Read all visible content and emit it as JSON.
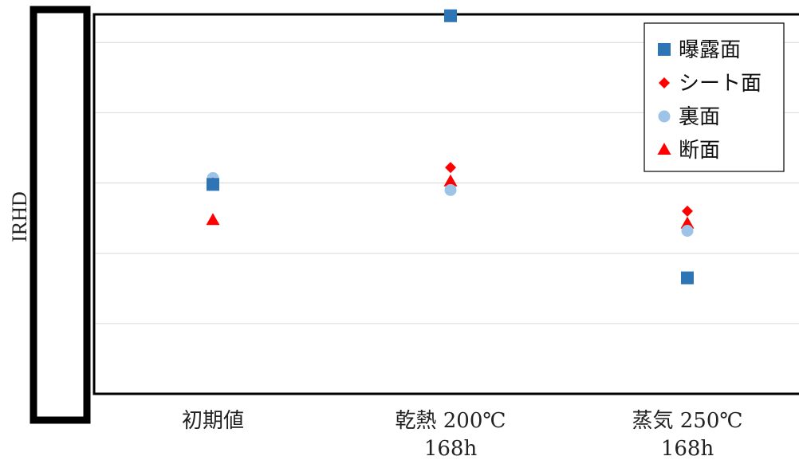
{
  "chart_data": {
    "type": "scatter",
    "title": "",
    "xlabel": "",
    "ylabel": "IRHD",
    "categories": [
      [
        "初期値"
      ],
      [
        "乾熱 200℃",
        "168h"
      ],
      [
        "蒸気 250℃",
        "168h"
      ]
    ],
    "ylim": [
      0,
      5.4
    ],
    "y_ticks": [
      1,
      2,
      3,
      4,
      5
    ],
    "y_tick_labels_visible": false,
    "grid": true,
    "legend_position": "top-right",
    "series": [
      {
        "name": "曝露面",
        "marker": "square",
        "color": "#2e75b6",
        "values": [
          2.98,
          5.38,
          1.65
        ]
      },
      {
        "name": "シート面",
        "marker": "diamond",
        "color": "#ff0000",
        "values": [
          3.0,
          3.22,
          2.6
        ]
      },
      {
        "name": "裏面",
        "marker": "circle",
        "color": "#9dc3e6",
        "values": [
          3.07,
          2.9,
          2.32
        ]
      },
      {
        "name": "断面",
        "marker": "triangle",
        "color": "#ff0000",
        "values": [
          2.47,
          3.02,
          2.42
        ]
      }
    ]
  }
}
